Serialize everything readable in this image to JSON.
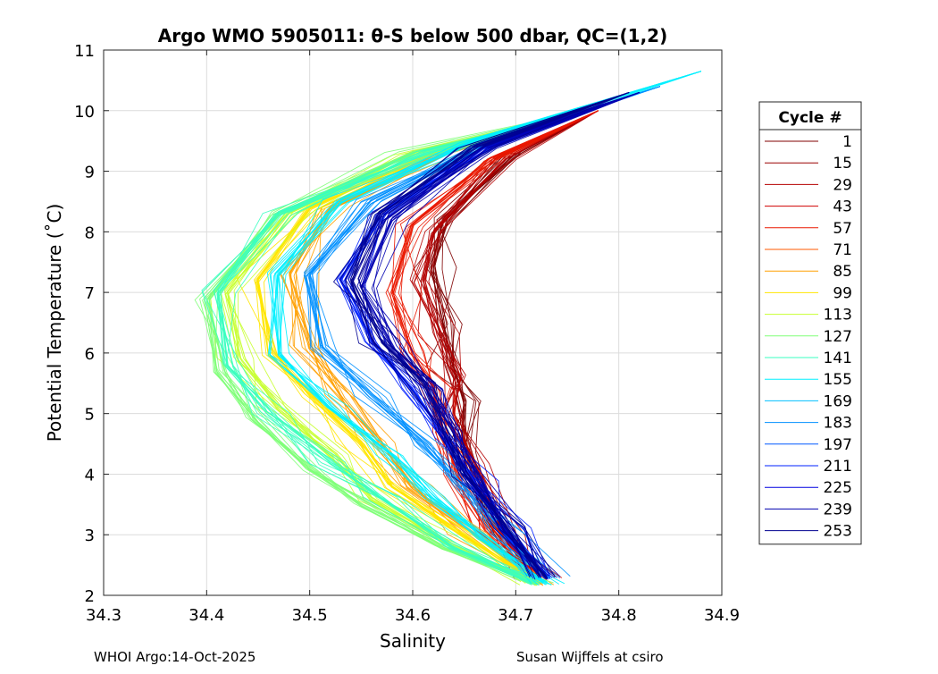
{
  "chart_data": {
    "type": "line",
    "title": "Argo WMO 5905011: θ-S below 500 dbar,  QC=(1,2)",
    "xlabel": "Salinity",
    "ylabel": "Potential Temperature (˚C)",
    "xlim": [
      34.3,
      34.9
    ],
    "ylim": [
      2,
      11
    ],
    "xticks": [
      "34.3",
      "34.4",
      "34.5",
      "34.6",
      "34.7",
      "34.8",
      "34.9"
    ],
    "yticks": [
      "2",
      "3",
      "4",
      "5",
      "6",
      "7",
      "8",
      "9",
      "10",
      "11"
    ],
    "grid": true,
    "legend": {
      "title": "Cycle #",
      "placement": "outside-right",
      "entries": [
        {
          "label": "1",
          "color": "#800000"
        },
        {
          "label": "15",
          "color": "#9a0000"
        },
        {
          "label": "29",
          "color": "#b40000"
        },
        {
          "label": "43",
          "color": "#d00000"
        },
        {
          "label": "57",
          "color": "#ea1800"
        },
        {
          "label": "71",
          "color": "#ff5a00"
        },
        {
          "label": "85",
          "color": "#ffa000"
        },
        {
          "label": "99",
          "color": "#ffe600"
        },
        {
          "label": "113",
          "color": "#c8ff30"
        },
        {
          "label": "127",
          "color": "#80ff78"
        },
        {
          "label": "141",
          "color": "#38ffc0"
        },
        {
          "label": "155",
          "color": "#00f0ff"
        },
        {
          "label": "169",
          "color": "#00c0ff"
        },
        {
          "label": "183",
          "color": "#0090ff"
        },
        {
          "label": "197",
          "color": "#0058ff"
        },
        {
          "label": "211",
          "color": "#0020ff"
        },
        {
          "label": "225",
          "color": "#0000e0"
        },
        {
          "label": "239",
          "color": "#0000b0"
        },
        {
          "label": "253",
          "color": "#000090"
        }
      ]
    },
    "series": [
      {
        "color": "#800000",
        "s": [
          34.78,
          34.7,
          34.63,
          34.62,
          34.63,
          34.64,
          34.65,
          34.65,
          34.68,
          34.72
        ],
        "t": [
          10.0,
          9.3,
          8.2,
          7.4,
          6.5,
          5.8,
          5.2,
          4.4,
          3.2,
          2.3
        ]
      },
      {
        "color": "#b40000",
        "s": [
          34.78,
          34.69,
          34.62,
          34.61,
          34.63,
          34.64,
          34.64,
          34.66,
          34.69,
          34.72
        ],
        "t": [
          10.0,
          9.2,
          8.0,
          7.2,
          6.3,
          5.6,
          5.0,
          4.2,
          3.0,
          2.3
        ]
      },
      {
        "color": "#ea1800",
        "s": [
          34.78,
          34.68,
          34.6,
          34.58,
          34.6,
          34.62,
          34.63,
          34.64,
          34.67,
          34.72
        ],
        "t": [
          10.0,
          9.2,
          8.1,
          7.0,
          6.0,
          5.4,
          4.7,
          4.0,
          3.1,
          2.3
        ]
      },
      {
        "color": "#ffa000",
        "s": [
          34.77,
          34.63,
          34.52,
          34.48,
          34.5,
          34.53,
          34.57,
          34.6,
          34.66,
          34.72
        ],
        "t": [
          10.0,
          9.3,
          8.4,
          7.3,
          6.1,
          5.3,
          4.5,
          3.8,
          3.0,
          2.2
        ]
      },
      {
        "color": "#ffe600",
        "s": [
          34.77,
          34.62,
          34.5,
          34.45,
          34.46,
          34.5,
          34.55,
          34.58,
          34.65,
          34.72
        ],
        "t": [
          10.0,
          9.3,
          8.4,
          7.2,
          6.0,
          5.3,
          4.5,
          3.8,
          3.0,
          2.2
        ]
      },
      {
        "color": "#c8ff30",
        "s": [
          34.77,
          34.6,
          34.48,
          34.42,
          34.43,
          34.47,
          34.52,
          34.56,
          34.64,
          34.72
        ],
        "t": [
          10.0,
          9.3,
          8.3,
          7.0,
          5.9,
          5.1,
          4.3,
          3.6,
          2.8,
          2.2
        ]
      },
      {
        "color": "#80ff78",
        "s": [
          34.77,
          34.6,
          34.47,
          34.4,
          34.41,
          34.45,
          34.5,
          34.55,
          34.63,
          34.72
        ],
        "t": [
          10.0,
          9.3,
          8.3,
          6.9,
          5.7,
          4.9,
          4.1,
          3.5,
          2.8,
          2.2
        ]
      },
      {
        "color": "#38ffc0",
        "s": [
          34.77,
          34.61,
          34.47,
          34.41,
          34.42,
          34.46,
          34.52,
          34.57,
          34.64,
          34.72
        ],
        "t": [
          10.0,
          9.3,
          8.3,
          7.0,
          5.8,
          5.0,
          4.2,
          3.6,
          2.8,
          2.2
        ]
      },
      {
        "color": "#00f0ff",
        "s": [
          34.88,
          34.66,
          34.53,
          34.47,
          34.47,
          34.52,
          34.58,
          34.62,
          34.67,
          34.73
        ],
        "t": [
          10.65,
          9.5,
          8.5,
          7.3,
          6.0,
          5.1,
          4.3,
          3.6,
          2.9,
          2.2
        ]
      },
      {
        "color": "#0090ff",
        "s": [
          34.84,
          34.68,
          34.56,
          34.5,
          34.51,
          34.56,
          34.61,
          34.65,
          34.69,
          34.73
        ],
        "t": [
          10.4,
          9.5,
          8.5,
          7.3,
          6.1,
          5.3,
          4.5,
          3.8,
          3.0,
          2.3
        ]
      },
      {
        "color": "#0020ff",
        "s": [
          34.82,
          34.67,
          34.57,
          34.53,
          34.56,
          34.6,
          34.63,
          34.66,
          34.69,
          34.73
        ],
        "t": [
          10.3,
          9.4,
          8.3,
          7.2,
          6.2,
          5.4,
          4.6,
          3.9,
          3.1,
          2.3
        ]
      },
      {
        "color": "#0000b0",
        "s": [
          34.82,
          34.67,
          34.58,
          34.55,
          34.58,
          34.62,
          34.64,
          34.66,
          34.69,
          34.73
        ],
        "t": [
          10.3,
          9.4,
          8.2,
          7.1,
          6.1,
          5.4,
          4.7,
          4.0,
          3.1,
          2.3
        ]
      },
      {
        "color": "#000090",
        "s": [
          34.81,
          34.66,
          34.57,
          34.54,
          34.57,
          34.61,
          34.63,
          34.65,
          34.69,
          34.73
        ],
        "t": [
          10.3,
          9.4,
          8.3,
          7.2,
          6.2,
          5.5,
          4.7,
          4.0,
          3.1,
          2.3
        ]
      }
    ]
  },
  "footer": {
    "left": "WHOI Argo:14-Oct-2025",
    "right": "Susan Wijffels at csiro"
  }
}
